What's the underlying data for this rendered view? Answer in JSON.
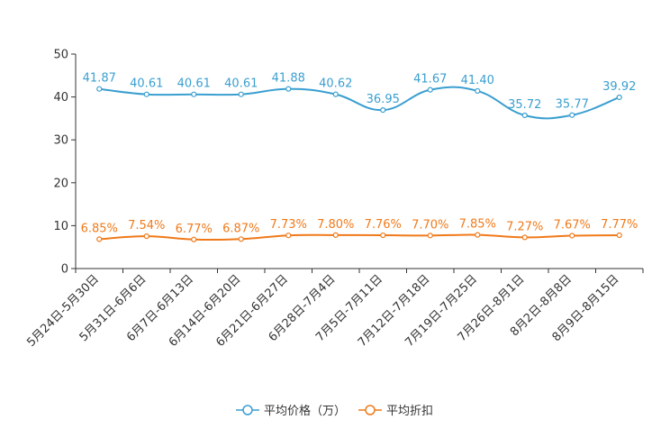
{
  "chart_data": {
    "type": "line",
    "categories": [
      "5月24日-5月30日",
      "5月31日-6月6日",
      "6月7日-6月13日",
      "6月14日-6月20日",
      "6月21日-6月27日",
      "6月28日-7月4日",
      "7月5日-7月11日",
      "7月12日-7月18日",
      "7月19日-7月25日",
      "7月26日-8月1日",
      "8月2日-8月8日",
      "8月9日-8月15日"
    ],
    "series": [
      {
        "name": "平均价格（万）",
        "color": "#3a9fd0",
        "values": [
          41.87,
          40.61,
          40.61,
          40.61,
          41.88,
          40.62,
          36.95,
          41.67,
          41.4,
          35.72,
          35.77,
          39.92
        ],
        "labels": [
          "41.87",
          "40.61",
          "40.61",
          "40.61",
          "41.88",
          "40.62",
          "36.95",
          "41.67",
          "41.40",
          "35.72",
          "35.77",
          "39.92"
        ]
      },
      {
        "name": "平均折扣",
        "color": "#f07a1a",
        "values": [
          6.85,
          7.54,
          6.77,
          6.87,
          7.73,
          7.8,
          7.76,
          7.7,
          7.85,
          7.27,
          7.67,
          7.77
        ],
        "labels": [
          "6.85%",
          "7.54%",
          "6.77%",
          "6.87%",
          "7.73%",
          "7.80%",
          "7.76%",
          "7.70%",
          "7.85%",
          "7.27%",
          "7.67%",
          "7.77%"
        ]
      }
    ],
    "y_ticks": [
      "0",
      "10",
      "20",
      "30",
      "40",
      "50"
    ],
    "ylim": [
      0,
      50
    ],
    "title": "",
    "xlabel": "",
    "ylabel": "",
    "legend_position": "bottom-center"
  }
}
